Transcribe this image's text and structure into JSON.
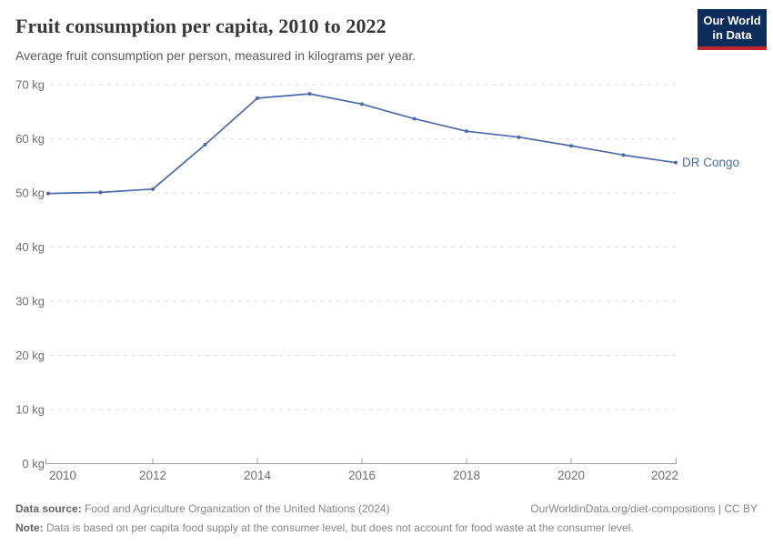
{
  "header": {
    "title": "Fruit consumption per capita, 2010 to 2022",
    "subtitle": "Average fruit consumption per person, measured in kilograms per year.",
    "logo": {
      "line1": "Our World",
      "line2": "in Data",
      "bg_color": "#0c2d5c",
      "accent_color": "#c0262d"
    }
  },
  "chart_data": {
    "type": "line",
    "title": "Fruit consumption per capita, 2010 to 2022",
    "xlabel": "",
    "ylabel": "",
    "x": [
      2010,
      2011,
      2012,
      2013,
      2014,
      2015,
      2016,
      2017,
      2018,
      2019,
      2020,
      2021,
      2022
    ],
    "series": [
      {
        "name": "DR Congo",
        "color": "#4c6ba8",
        "values": [
          49.9,
          50.1,
          50.7,
          58.9,
          67.5,
          68.3,
          66.4,
          63.7,
          61.4,
          60.3,
          58.7,
          57.0,
          55.6
        ]
      }
    ],
    "ylim": [
      0,
      70
    ],
    "ytick_step": 10,
    "ytick_suffix": " kg",
    "xticks": [
      2010,
      2012,
      2014,
      2016,
      2018,
      2020,
      2022
    ],
    "grid": "horizontal-dashed",
    "legend": "end-of-line-label"
  },
  "footer": {
    "data_source_label": "Data source:",
    "data_source_text": "Food and Agriculture Organization of the United Nations (2024)",
    "attribution": "OurWorldinData.org/diet-compositions | CC BY",
    "note_label": "Note:",
    "note_text": "Data is based on per capita food supply at the consumer level, but does not account for food waste at the consumer level."
  }
}
